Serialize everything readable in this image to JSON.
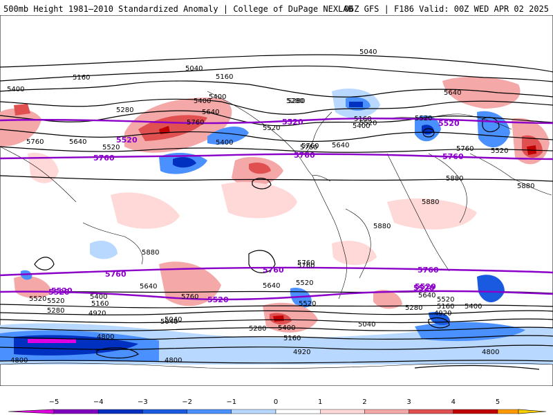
{
  "header": {
    "left": "500mb Height 1981–2010 Standardized Anomaly | College of DuPage NEXLAB",
    "right": "06Z GFS | F186 Valid: 00Z WED APR 02 2025"
  },
  "map": {
    "projection": "global",
    "fill_variable": "standardized height anomaly",
    "contour_variable": "500mb height",
    "contour_labels": [
      "5040",
      "5160",
      "5400",
      "5280",
      "5640",
      "5760",
      "5520",
      "5400",
      "5520",
      "5640",
      "5760",
      "5280",
      "5520",
      "5400",
      "5640",
      "5520",
      "5760",
      "5880",
      "5880",
      "5880",
      "5880",
      "5760",
      "5640",
      "5520",
      "5760",
      "5520",
      "5400",
      "5280",
      "5160",
      "5040",
      "4920",
      "4800",
      "4800",
      "5520",
      "5760",
      "5640",
      "5520",
      "5400",
      "5280",
      "5160",
      "5040",
      "4920",
      "5520",
      "5640",
      "5400",
      "5160",
      "5280",
      "4920",
      "4800",
      "5520",
      "5760",
      "5040",
      "5160",
      "5280",
      "5400",
      "5640",
      "5400",
      "5040",
      "5160",
      "5760",
      "4800",
      "5880"
    ],
    "highlight_contour_labels": [
      "5520",
      "5520",
      "5760",
      "5520",
      "5760",
      "5520",
      "5760",
      "5760",
      "5760",
      "5520",
      "5520",
      "5520",
      "5760",
      "5520"
    ]
  },
  "colorbar": {
    "ticks": [
      "−5",
      "−4",
      "−3",
      "−2",
      "−1",
      "0",
      "1",
      "2",
      "3",
      "4",
      "5"
    ],
    "colors": {
      "lt5": "#e000e0",
      "n5": "#8000c0",
      "n4": "#0030c0",
      "n3": "#1a5ae0",
      "n2": "#4a90ff",
      "n1": "#b8d8ff",
      "n0": "#ffffff",
      "p1": "#ffd8d8",
      "p2": "#f5a8a8",
      "p3": "#e05050",
      "p4": "#c00000",
      "p5": "#ff9a00",
      "gt5": "#ffd000"
    }
  }
}
